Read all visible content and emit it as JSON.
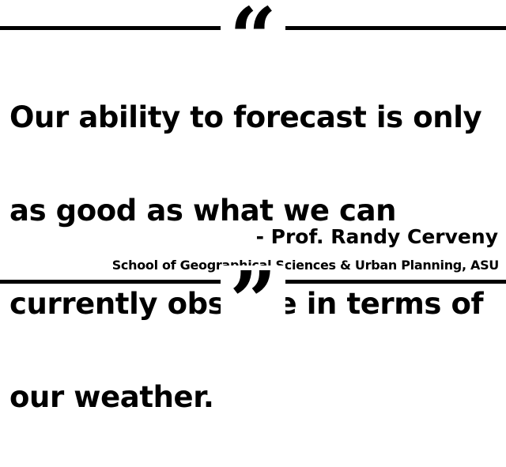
{
  "quote": {
    "open_mark": "“",
    "text_lines": [
      "Our ability to forecast is only",
      "as good as what we can",
      "currently observe in terms of",
      "our weather."
    ],
    "close_mark": "”"
  },
  "attribution": {
    "name": "- Prof. Randy Cerveny",
    "affiliation": "School of Geographical Sciences & Urban Planning, ASU"
  },
  "colors": {
    "text": "#000000",
    "background": "#ffffff",
    "rule": "#000000"
  }
}
